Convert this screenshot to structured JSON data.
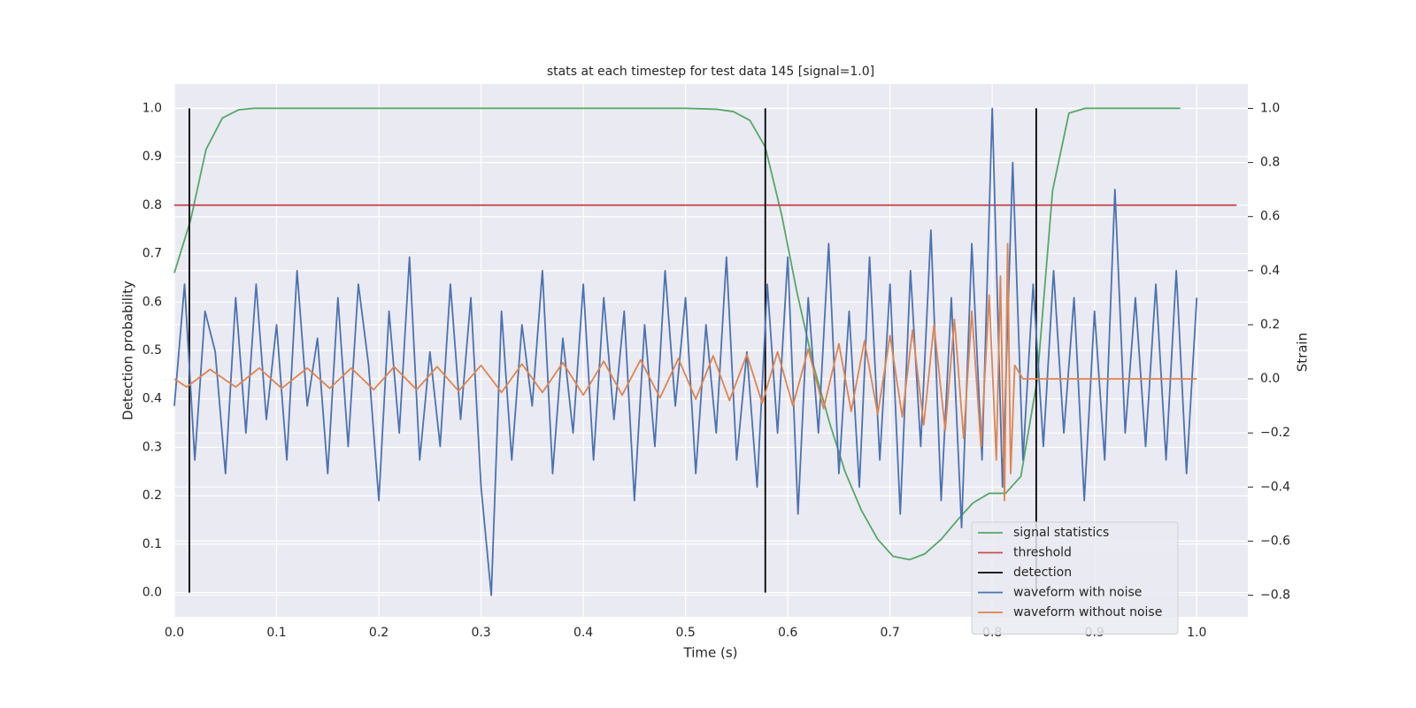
{
  "chart_data": {
    "type": "line",
    "title": "stats at each timestep for test data 145 [signal=1.0]",
    "xlabel": "Time (s)",
    "ylabel": "Detection probability",
    "y2label": "Strain",
    "xlim": [
      0,
      1.05
    ],
    "ylim": [
      -0.05,
      1.05
    ],
    "y2lim": [
      -0.88,
      1.09
    ],
    "xticks": [
      {
        "value": 0,
        "label": "0.0"
      },
      0.1,
      0.2,
      0.3,
      0.4,
      0.5,
      0.6,
      0.7,
      0.8,
      0.9,
      {
        "value": 1,
        "label": "1.0"
      }
    ],
    "yticks": [
      {
        "value": 0,
        "label": "0.0"
      },
      0.1,
      0.2,
      0.3,
      0.4,
      0.5,
      0.6,
      0.7,
      0.8,
      0.9,
      {
        "value": 1,
        "label": "1.0"
      }
    ],
    "y2ticks": [
      {
        "value": -0.8,
        "label": "−0.8"
      },
      {
        "value": -0.6,
        "label": "−0.6"
      },
      {
        "value": -0.4,
        "label": "−0.4"
      },
      {
        "value": -0.2,
        "label": "−0.2"
      },
      {
        "value": 0,
        "label": "0.0"
      },
      0.2,
      0.4,
      0.6,
      0.8,
      {
        "value": 1,
        "label": "1.0"
      }
    ],
    "grid": true,
    "legend": "lower right",
    "series": [
      {
        "name": "signal statistics",
        "color": "#55a868",
        "axis": "y",
        "x": [
          0,
          0.016,
          0.031,
          0.047,
          0.063,
          0.078,
          0.5,
          0.531,
          0.547,
          0.563,
          0.578,
          0.594,
          0.609,
          0.625,
          0.641,
          0.656,
          0.672,
          0.688,
          0.703,
          0.719,
          0.734,
          0.75,
          0.766,
          0.781,
          0.797,
          0.813,
          0.828,
          0.844,
          0.859,
          0.875,
          0.891,
          0.984
        ],
        "values": [
          0.66,
          0.77,
          0.915,
          0.98,
          0.997,
          1.0,
          1.0,
          0.998,
          0.993,
          0.975,
          0.92,
          0.78,
          0.62,
          0.47,
          0.35,
          0.25,
          0.17,
          0.11,
          0.075,
          0.068,
          0.08,
          0.11,
          0.15,
          0.185,
          0.205,
          0.205,
          0.24,
          0.44,
          0.83,
          0.99,
          1.0,
          1.0
        ]
      },
      {
        "name": "threshold",
        "color": "#c44e52",
        "axis": "y",
        "x": [
          0,
          1.039
        ],
        "values": [
          0.8,
          0.8
        ]
      },
      {
        "name": "detection",
        "color": "#000000",
        "axis": "y",
        "kind": "vlines",
        "x": [
          0.0147,
          0.578,
          0.843
        ],
        "span": [
          0,
          1
        ]
      },
      {
        "name": "waveform with noise",
        "color": "#4c72b0",
        "axis": "y2",
        "x": [
          0,
          0.01,
          0.02,
          0.03,
          0.04,
          0.05,
          0.06,
          0.07,
          0.08,
          0.09,
          0.1,
          0.11,
          0.12,
          0.13,
          0.14,
          0.15,
          0.16,
          0.17,
          0.18,
          0.19,
          0.2,
          0.21,
          0.22,
          0.23,
          0.24,
          0.25,
          0.26,
          0.27,
          0.28,
          0.29,
          0.3,
          0.31,
          0.32,
          0.33,
          0.34,
          0.35,
          0.36,
          0.37,
          0.38,
          0.39,
          0.4,
          0.41,
          0.42,
          0.43,
          0.44,
          0.45,
          0.46,
          0.47,
          0.48,
          0.49,
          0.5,
          0.51,
          0.52,
          0.53,
          0.54,
          0.55,
          0.56,
          0.57,
          0.58,
          0.59,
          0.6,
          0.61,
          0.62,
          0.63,
          0.64,
          0.65,
          0.66,
          0.67,
          0.68,
          0.69,
          0.7,
          0.71,
          0.72,
          0.73,
          0.74,
          0.75,
          0.76,
          0.77,
          0.78,
          0.79,
          0.8,
          0.81,
          0.82,
          0.83,
          0.84,
          0.85,
          0.86,
          0.87,
          0.88,
          0.89,
          0.9,
          0.91,
          0.92,
          0.93,
          0.94,
          0.95,
          0.96,
          0.97,
          0.98,
          0.99,
          1.0
        ],
        "values": [
          -0.1,
          0.35,
          -0.3,
          0.25,
          0.1,
          -0.35,
          0.3,
          -0.2,
          0.35,
          -0.15,
          0.2,
          -0.3,
          0.4,
          -0.1,
          0.15,
          -0.35,
          0.3,
          -0.25,
          0.35,
          0.05,
          -0.45,
          0.25,
          -0.2,
          0.45,
          -0.3,
          0.1,
          -0.25,
          0.35,
          -0.15,
          0.3,
          -0.4,
          -0.8,
          0.25,
          -0.3,
          0.2,
          -0.1,
          0.4,
          -0.35,
          0.15,
          -0.2,
          0.35,
          -0.3,
          0.3,
          -0.15,
          0.25,
          -0.45,
          0.2,
          -0.25,
          0.4,
          -0.1,
          0.3,
          -0.35,
          0.2,
          -0.2,
          0.45,
          -0.3,
          0.1,
          -0.4,
          0.35,
          -0.2,
          0.45,
          -0.5,
          0.3,
          -0.2,
          0.5,
          -0.35,
          0.25,
          -0.4,
          0.45,
          -0.3,
          0.35,
          -0.5,
          0.4,
          -0.25,
          0.55,
          -0.45,
          0.3,
          -0.55,
          0.5,
          -0.3,
          1.0,
          -0.4,
          0.8,
          -0.3,
          0.35,
          -0.25,
          0.4,
          -0.2,
          0.3,
          -0.45,
          0.25,
          -0.3,
          0.7,
          -0.2,
          0.3,
          -0.25,
          0.35,
          -0.3,
          0.4,
          -0.35,
          0.3
        ]
      },
      {
        "name": "waveform without noise",
        "color": "#dd8452",
        "axis": "y2",
        "x": [
          0,
          0.012,
          0.035,
          0.06,
          0.083,
          0.105,
          0.13,
          0.152,
          0.173,
          0.195,
          0.215,
          0.237,
          0.257,
          0.278,
          0.3,
          0.32,
          0.34,
          0.36,
          0.38,
          0.4,
          0.42,
          0.438,
          0.456,
          0.475,
          0.493,
          0.51,
          0.527,
          0.543,
          0.56,
          0.575,
          0.59,
          0.605,
          0.62,
          0.635,
          0.65,
          0.662,
          0.675,
          0.688,
          0.7,
          0.712,
          0.722,
          0.733,
          0.743,
          0.754,
          0.763,
          0.772,
          0.78,
          0.789,
          0.797,
          0.804,
          0.808,
          0.812,
          0.815,
          0.818,
          0.822,
          0.83,
          1.0
        ],
        "values": [
          0.0,
          -0.03,
          0.035,
          -0.03,
          0.04,
          -0.035,
          0.04,
          -0.035,
          0.04,
          -0.04,
          0.045,
          -0.04,
          0.045,
          -0.045,
          0.05,
          -0.05,
          0.055,
          -0.05,
          0.06,
          -0.06,
          0.065,
          -0.06,
          0.07,
          -0.07,
          0.075,
          -0.075,
          0.085,
          -0.08,
          0.09,
          -0.09,
          0.1,
          -0.1,
          0.11,
          -0.11,
          0.13,
          -0.12,
          0.14,
          -0.13,
          0.16,
          -0.14,
          0.18,
          -0.17,
          0.2,
          -0.19,
          0.22,
          -0.22,
          0.25,
          -0.25,
          0.31,
          -0.3,
          0.38,
          -0.45,
          0.5,
          -0.35,
          0.05,
          0.0,
          0.0
        ]
      }
    ]
  }
}
